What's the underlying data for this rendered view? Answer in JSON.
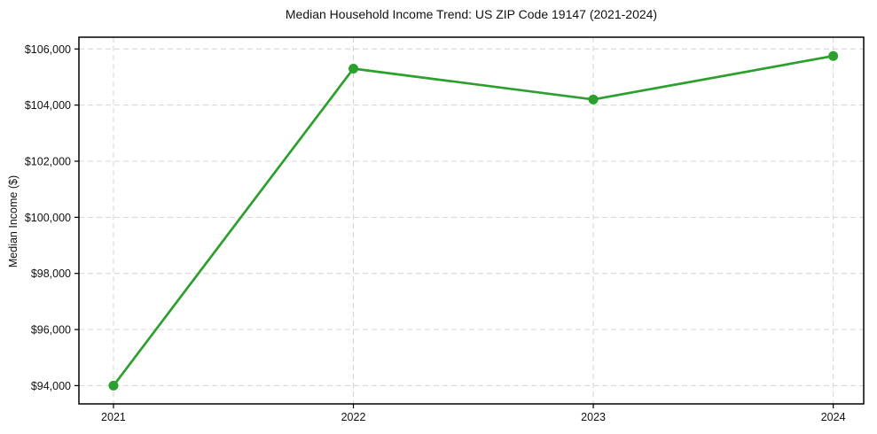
{
  "chart_data": {
    "type": "line",
    "title": "Median Household Income Trend: US ZIP Code 19147 (2021-2024)",
    "xlabel": "",
    "ylabel": "Median Income ($)",
    "x": [
      2021,
      2022,
      2023,
      2024
    ],
    "series": [
      {
        "name": "Median Household Income",
        "values": [
          94000,
          105300,
          104200,
          105750
        ]
      }
    ],
    "x_ticks": [
      {
        "value": 2021,
        "label": "2021"
      },
      {
        "value": 2022,
        "label": "2022"
      },
      {
        "value": 2023,
        "label": "2023"
      },
      {
        "value": 2024,
        "label": "2024"
      }
    ],
    "y_ticks": [
      {
        "value": 94000,
        "label": "$94,000"
      },
      {
        "value": 96000,
        "label": "$96,000"
      },
      {
        "value": 98000,
        "label": "$98,000"
      },
      {
        "value": 100000,
        "label": "$100,000"
      },
      {
        "value": 102000,
        "label": "$102,000"
      },
      {
        "value": 104000,
        "label": "$104,000"
      },
      {
        "value": 106000,
        "label": "$106,000"
      }
    ],
    "xlim": [
      2020.856,
      2024.127
    ],
    "ylim": [
      93350,
      106420
    ],
    "grid": true,
    "grid_style": "dashed",
    "legend_position": "none",
    "marker": "circle",
    "colors": {
      "line": "#2ca02c",
      "marker": "#2ca02c",
      "grid": "#d4d4d4",
      "axis": "#000000",
      "background": "#ffffff",
      "text": "#111111"
    }
  }
}
